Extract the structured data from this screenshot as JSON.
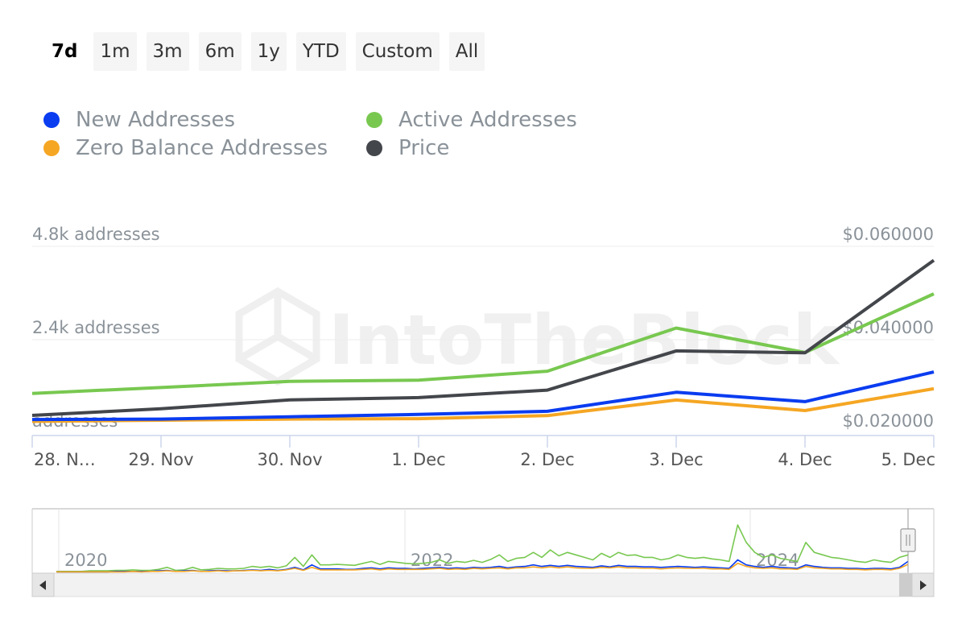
{
  "range_selector": {
    "buttons": [
      "7d",
      "1m",
      "3m",
      "6m",
      "1y",
      "YTD",
      "Custom",
      "All"
    ],
    "active": "7d"
  },
  "watermark": "IntoTheBlock",
  "legend": [
    {
      "label": "New Addresses",
      "color": "#0a3cf0"
    },
    {
      "label": "Active Addresses",
      "color": "#78c850"
    },
    {
      "label": "Zero Balance Addresses",
      "color": "#f5a623"
    },
    {
      "label": "Price",
      "color": "#43464b"
    }
  ],
  "chart_data": {
    "type": "line",
    "x_tick_labels": [
      "28. N…",
      "29. Nov",
      "30. Nov",
      "1. Dec",
      "2. Dec",
      "3. Dec",
      "4. Dec",
      "5. Dec"
    ],
    "y_left": {
      "tick_labels": [
        "addresses",
        "2.4k addresses",
        "4.8k addresses"
      ],
      "ticks": [
        0,
        2400,
        4800
      ],
      "ylim": [
        0,
        4800
      ]
    },
    "y_right": {
      "tick_labels": [
        "$0.020000",
        "$0.040000",
        "$0.060000"
      ],
      "ticks": [
        0.02,
        0.04,
        0.06
      ],
      "ylim": [
        0.02,
        0.06
      ]
    },
    "grid": true,
    "legend_position": "top",
    "series": [
      {
        "name": "New Addresses",
        "axis": "left",
        "color": "#0a3cf0",
        "values": [
          350,
          360,
          420,
          480,
          560,
          1050,
          810,
          1570
        ]
      },
      {
        "name": "Active Addresses",
        "axis": "left",
        "color": "#78c850",
        "values": [
          1020,
          1170,
          1330,
          1360,
          1590,
          2700,
          2070,
          3580
        ]
      },
      {
        "name": "Zero Balance Addresses",
        "axis": "left",
        "color": "#f5a623",
        "values": [
          300,
          330,
          360,
          370,
          450,
          850,
          580,
          1140
        ]
      },
      {
        "name": "Price",
        "axis": "right",
        "color": "#43464b",
        "values": [
          0.0238,
          0.0252,
          0.0271,
          0.0276,
          0.0292,
          0.0376,
          0.0372,
          0.057
        ]
      }
    ]
  },
  "navigator": {
    "year_labels": [
      "2020",
      "2022",
      "2024"
    ],
    "series": [
      {
        "name": "Active Addresses",
        "color": "#78c850",
        "values": [
          2,
          2,
          2,
          2,
          3,
          3,
          3,
          4,
          4,
          5,
          4,
          4,
          6,
          10,
          4,
          5,
          10,
          5,
          6,
          8,
          7,
          7,
          8,
          12,
          10,
          12,
          9,
          13,
          30,
          12,
          35,
          15,
          15,
          16,
          15,
          14,
          18,
          22,
          16,
          22,
          20,
          18,
          17,
          18,
          20,
          25,
          18,
          22,
          20,
          24,
          20,
          26,
          35,
          22,
          28,
          30,
          40,
          30,
          45,
          33,
          40,
          35,
          30,
          25,
          38,
          30,
          40,
          34,
          35,
          30,
          30,
          25,
          28,
          35,
          30,
          28,
          30,
          27,
          25,
          22,
          95,
          60,
          40,
          30,
          35,
          28,
          25,
          22,
          60,
          40,
          35,
          30,
          28,
          25,
          22,
          20,
          25,
          22,
          20,
          30,
          35
        ]
      },
      {
        "name": "New Addresses",
        "color": "#0a3cf0",
        "values": [
          1,
          1,
          1,
          1,
          1,
          1,
          1,
          2,
          2,
          2,
          2,
          2,
          3,
          4,
          2,
          3,
          4,
          2,
          3,
          4,
          3,
          3,
          4,
          5,
          4,
          6,
          4,
          6,
          10,
          5,
          15,
          7,
          7,
          7,
          6,
          6,
          8,
          9,
          7,
          9,
          8,
          8,
          7,
          8,
          9,
          10,
          8,
          9,
          8,
          10,
          9,
          10,
          12,
          9,
          11,
          12,
          15,
          12,
          14,
          12,
          14,
          12,
          11,
          10,
          13,
          11,
          14,
          12,
          12,
          11,
          11,
          10,
          11,
          12,
          11,
          10,
          11,
          10,
          9,
          8,
          25,
          15,
          12,
          10,
          12,
          10,
          9,
          8,
          15,
          12,
          10,
          9,
          9,
          8,
          8,
          7,
          8,
          8,
          7,
          10,
          22
        ]
      },
      {
        "name": "Zero Balance Addresses",
        "color": "#f5a623",
        "values": [
          1,
          1,
          1,
          1,
          1,
          1,
          1,
          1,
          1,
          2,
          1,
          2,
          2,
          3,
          2,
          2,
          3,
          2,
          2,
          3,
          2,
          3,
          3,
          4,
          3,
          4,
          3,
          5,
          8,
          4,
          10,
          5,
          5,
          5,
          5,
          5,
          6,
          7,
          5,
          7,
          6,
          6,
          6,
          6,
          7,
          8,
          6,
          7,
          6,
          8,
          7,
          8,
          9,
          7,
          9,
          9,
          11,
          9,
          11,
          9,
          11,
          9,
          8,
          8,
          10,
          9,
          11,
          9,
          9,
          8,
          8,
          7,
          8,
          9,
          8,
          8,
          8,
          7,
          7,
          6,
          18,
          12,
          9,
          8,
          9,
          7,
          7,
          6,
          12,
          9,
          8,
          7,
          7,
          6,
          6,
          5,
          6,
          6,
          5,
          8,
          16
        ]
      }
    ]
  }
}
